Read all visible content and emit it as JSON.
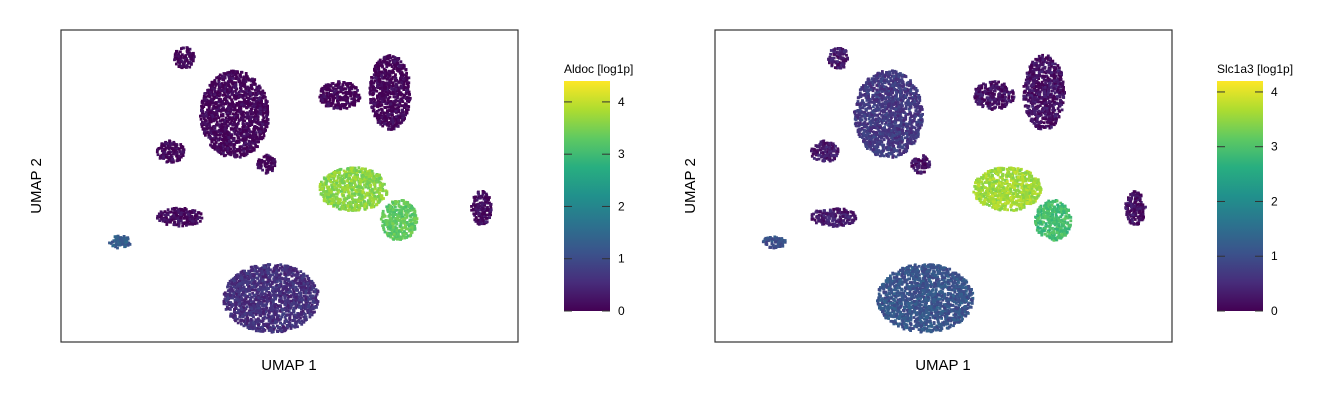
{
  "chart_data": [
    {
      "type": "scatter",
      "subtype": "umap-embedding",
      "title": "",
      "xlabel": "UMAP 1",
      "ylabel": "UMAP 2",
      "color_scale": {
        "label": "Aldoc [log1p]",
        "palette": "viridis",
        "min": 0,
        "max": 4.4,
        "ticks": [
          0,
          1,
          2,
          3,
          4
        ]
      },
      "clusters": [
        {
          "id": "top-small",
          "cx": 0.27,
          "cy": 0.09,
          "rx": 0.022,
          "ry": 0.035,
          "value": 0.05
        },
        {
          "id": "large-upper",
          "cx": 0.38,
          "cy": 0.27,
          "rx": 0.075,
          "ry": 0.14,
          "value": 0.05
        },
        {
          "id": "upper-left-mid",
          "cx": 0.24,
          "cy": 0.39,
          "rx": 0.03,
          "ry": 0.035,
          "value": 0.08
        },
        {
          "id": "tiny-bump",
          "cx": 0.45,
          "cy": 0.43,
          "rx": 0.02,
          "ry": 0.03,
          "value": 0.1
        },
        {
          "id": "upper-right-ring",
          "cx": 0.61,
          "cy": 0.21,
          "rx": 0.045,
          "ry": 0.045,
          "value": 0.05
        },
        {
          "id": "upper-right-curve",
          "cx": 0.72,
          "cy": 0.2,
          "rx": 0.045,
          "ry": 0.12,
          "value": 0.05
        },
        {
          "id": "central-left-lobe",
          "cx": 0.64,
          "cy": 0.51,
          "rx": 0.075,
          "ry": 0.07,
          "value": 3.6
        },
        {
          "id": "central-right-lobe",
          "cx": 0.74,
          "cy": 0.61,
          "rx": 0.04,
          "ry": 0.065,
          "value": 3.3
        },
        {
          "id": "right-small",
          "cx": 0.92,
          "cy": 0.57,
          "rx": 0.022,
          "ry": 0.055,
          "value": 0.15
        },
        {
          "id": "left-mid",
          "cx": 0.26,
          "cy": 0.6,
          "rx": 0.05,
          "ry": 0.03,
          "value": 0.1
        },
        {
          "id": "left-small",
          "cx": 0.13,
          "cy": 0.68,
          "rx": 0.025,
          "ry": 0.02,
          "value": 1.3
        },
        {
          "id": "bottom-large",
          "cx": 0.46,
          "cy": 0.86,
          "rx": 0.105,
          "ry": 0.11,
          "value": 0.6
        }
      ]
    },
    {
      "type": "scatter",
      "subtype": "umap-embedding",
      "title": "",
      "xlabel": "UMAP 1",
      "ylabel": "UMAP 2",
      "color_scale": {
        "label": "Slc1a3 [log1p]",
        "palette": "viridis",
        "min": 0,
        "max": 4.2,
        "ticks": [
          0,
          1,
          2,
          3,
          4
        ]
      },
      "clusters": [
        {
          "id": "top-small",
          "cx": 0.27,
          "cy": 0.09,
          "rx": 0.022,
          "ry": 0.035,
          "value": 0.3
        },
        {
          "id": "large-upper",
          "cx": 0.38,
          "cy": 0.27,
          "rx": 0.075,
          "ry": 0.14,
          "value": 0.7
        },
        {
          "id": "upper-left-mid",
          "cx": 0.24,
          "cy": 0.39,
          "rx": 0.03,
          "ry": 0.035,
          "value": 0.3
        },
        {
          "id": "tiny-bump",
          "cx": 0.45,
          "cy": 0.43,
          "rx": 0.02,
          "ry": 0.03,
          "value": 0.2
        },
        {
          "id": "upper-right-ring",
          "cx": 0.61,
          "cy": 0.21,
          "rx": 0.045,
          "ry": 0.045,
          "value": 0.2
        },
        {
          "id": "upper-right-curve",
          "cx": 0.72,
          "cy": 0.2,
          "rx": 0.045,
          "ry": 0.12,
          "value": 0.2
        },
        {
          "id": "central-left-lobe",
          "cx": 0.64,
          "cy": 0.51,
          "rx": 0.075,
          "ry": 0.07,
          "value": 3.6
        },
        {
          "id": "central-right-lobe",
          "cx": 0.74,
          "cy": 0.61,
          "rx": 0.04,
          "ry": 0.065,
          "value": 2.9
        },
        {
          "id": "right-small",
          "cx": 0.92,
          "cy": 0.57,
          "rx": 0.022,
          "ry": 0.055,
          "value": 0.2
        },
        {
          "id": "left-mid",
          "cx": 0.26,
          "cy": 0.6,
          "rx": 0.05,
          "ry": 0.03,
          "value": 0.3
        },
        {
          "id": "left-small",
          "cx": 0.13,
          "cy": 0.68,
          "rx": 0.025,
          "ry": 0.02,
          "value": 1.0
        },
        {
          "id": "bottom-large",
          "cx": 0.46,
          "cy": 0.86,
          "rx": 0.105,
          "ry": 0.11,
          "value": 1.1
        }
      ]
    }
  ]
}
